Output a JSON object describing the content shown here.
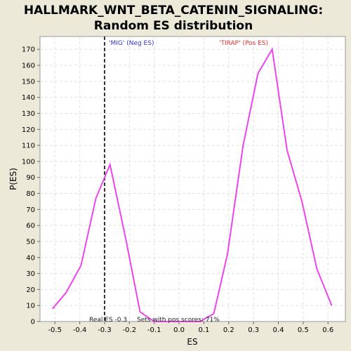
{
  "chart_data": {
    "type": "line",
    "title_line1": "HALLMARK_WNT_BETA_CATENIN_SIGNALING:",
    "title_line2": "Random ES distribution",
    "xlabel": "ES",
    "ylabel": "P(ES)",
    "xlim": [
      -0.56,
      0.67
    ],
    "ylim": [
      0,
      178
    ],
    "xticks": [
      -0.5,
      -0.4,
      -0.3,
      -0.2,
      -0.1,
      0.0,
      0.1,
      0.2,
      0.3,
      0.4,
      0.5,
      0.6
    ],
    "yticks": [
      0,
      10,
      20,
      30,
      40,
      50,
      60,
      70,
      80,
      90,
      100,
      110,
      120,
      130,
      140,
      150,
      160,
      170
    ],
    "grid": true,
    "series": [
      {
        "color": "#ee44ee",
        "x": [
          -0.51,
          -0.455,
          -0.395,
          -0.335,
          -0.278,
          -0.215,
          -0.157,
          -0.1,
          -0.04,
          0.02,
          0.085,
          0.14,
          0.195,
          0.258,
          0.318,
          0.375,
          0.435,
          0.495,
          0.555,
          0.615
        ],
        "y": [
          8,
          18,
          35,
          77,
          98,
          52,
          6,
          0,
          0,
          0,
          0,
          5,
          42,
          110,
          155,
          170,
          107,
          75,
          33,
          10
        ]
      }
    ],
    "real_es_line": {
      "x": -0.3
    },
    "annotations": {
      "neg_label": "'MIG' (Neg ES)",
      "neg_color": "#3333cc",
      "pos_label": "'TIRAP' (Pos ES)",
      "pos_color": "#dd3333"
    },
    "footer_real_es": "Real ES -0.3",
    "footer_sets": "Sets with pos scores: 71%"
  }
}
